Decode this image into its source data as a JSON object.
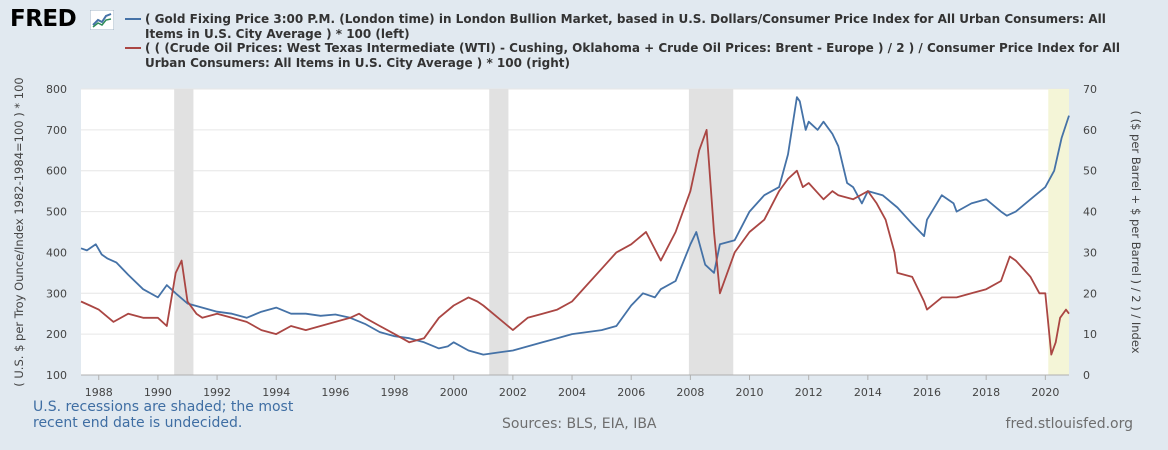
{
  "header": {
    "logo_text": "FRED",
    "logo_icon": "chart-line-icon"
  },
  "legend": [
    {
      "label": "( Gold Fixing Price 3:00 P.M. (London time) in London Bullion Market, based in U.S. Dollars/Consumer Price Index for All Urban Consumers: All Items in U.S. City Average ) * 100 (left)",
      "color": "#4572a7"
    },
    {
      "label": "( ( (Crude Oil Prices: West Texas Intermediate (WTI) - Cushing, Oklahoma + Crude Oil Prices: Brent - Europe ) / 2 ) / Consumer Price Index for All Urban Consumers: All Items in U.S. City Average ) * 100 (right)",
      "color": "#aa4643"
    }
  ],
  "footer": {
    "recession_note": "U.S. recessions are shaded; the most recent end date is undecided.",
    "sources": "Sources: BLS, EIA, IBA",
    "site": "fred.stlouisfed.org"
  },
  "chart_data": {
    "type": "line",
    "x_range": [
      1987.4,
      2020.8
    ],
    "x_ticks": [
      1988,
      1990,
      1992,
      1994,
      1996,
      1998,
      2000,
      2002,
      2004,
      2006,
      2008,
      2010,
      2012,
      2014,
      2016,
      2018,
      2020
    ],
    "ylabel_left": "( U.S. $ per Troy Ounce/Index 1982-1984=100 ) * 100",
    "ylabel_right": "( ($ per Barrel + $ per Barrel ) / 2 ) / Index",
    "ylim_left": [
      100,
      800
    ],
    "yticks_left": [
      100,
      200,
      300,
      400,
      500,
      600,
      700,
      800
    ],
    "ylim_right": [
      0,
      70
    ],
    "yticks_right": [
      0,
      10,
      20,
      30,
      40,
      50,
      60,
      70
    ],
    "recessions": [
      [
        1990.55,
        1991.2
      ],
      [
        2001.2,
        2001.85
      ],
      [
        2007.95,
        2009.45
      ]
    ],
    "undecided_recession": [
      2020.1,
      2020.8
    ],
    "series": [
      {
        "name": "Gold / CPI * 100",
        "axis": "left",
        "color": "#4572a7",
        "x": [
          1987.4,
          1987.6,
          1987.9,
          1988.1,
          1988.3,
          1988.6,
          1989.0,
          1989.5,
          1990.0,
          1990.3,
          1990.6,
          1991.0,
          1991.5,
          1992.0,
          1992.5,
          1993.0,
          1993.5,
          1994.0,
          1994.5,
          1995.0,
          1995.5,
          1996.0,
          1996.5,
          1997.0,
          1997.5,
          1998.0,
          1998.5,
          1999.0,
          1999.5,
          1999.8,
          2000.0,
          2000.5,
          2001.0,
          2001.5,
          2002.0,
          2002.5,
          2003.0,
          2003.5,
          2004.0,
          2004.5,
          2005.0,
          2005.5,
          2006.0,
          2006.4,
          2006.8,
          2007.0,
          2007.5,
          2008.0,
          2008.2,
          2008.5,
          2008.8,
          2009.0,
          2009.5,
          2010.0,
          2010.5,
          2011.0,
          2011.3,
          2011.6,
          2011.7,
          2011.9,
          2012.0,
          2012.3,
          2012.5,
          2012.8,
          2013.0,
          2013.3,
          2013.5,
          2013.8,
          2014.0,
          2014.5,
          2015.0,
          2015.5,
          2015.9,
          2016.0,
          2016.5,
          2016.9,
          2017.0,
          2017.5,
          2018.0,
          2018.5,
          2018.7,
          2019.0,
          2019.5,
          2020.0,
          2020.3,
          2020.55,
          2020.8
        ],
        "values": [
          410,
          405,
          420,
          395,
          385,
          375,
          345,
          310,
          290,
          320,
          300,
          275,
          265,
          255,
          250,
          240,
          255,
          265,
          250,
          250,
          245,
          248,
          240,
          225,
          205,
          195,
          190,
          180,
          165,
          170,
          180,
          160,
          150,
          155,
          160,
          170,
          180,
          190,
          200,
          205,
          210,
          220,
          270,
          300,
          290,
          310,
          330,
          420,
          450,
          370,
          350,
          420,
          430,
          500,
          540,
          560,
          640,
          780,
          770,
          700,
          720,
          700,
          720,
          690,
          660,
          570,
          560,
          520,
          550,
          540,
          510,
          470,
          440,
          480,
          540,
          520,
          500,
          520,
          530,
          500,
          490,
          500,
          530,
          560,
          600,
          680,
          735
        ]
      },
      {
        "name": "Avg crude oil / CPI * 100",
        "axis": "right",
        "color": "#aa4643",
        "x": [
          1987.4,
          1987.7,
          1988.0,
          1988.5,
          1989.0,
          1989.5,
          1990.0,
          1990.3,
          1990.6,
          1990.8,
          1991.0,
          1991.3,
          1991.5,
          1992.0,
          1992.5,
          1993.0,
          1993.5,
          1994.0,
          1994.5,
          1995.0,
          1995.5,
          1996.0,
          1996.5,
          1996.8,
          1997.0,
          1997.5,
          1998.0,
          1998.5,
          1999.0,
          1999.5,
          2000.0,
          2000.5,
          2000.8,
          2001.0,
          2001.5,
          2002.0,
          2002.5,
          2003.0,
          2003.5,
          2004.0,
          2004.5,
          2005.0,
          2005.5,
          2006.0,
          2006.5,
          2007.0,
          2007.5,
          2008.0,
          2008.3,
          2008.55,
          2008.8,
          2009.0,
          2009.5,
          2010.0,
          2010.5,
          2011.0,
          2011.3,
          2011.6,
          2011.8,
          2012.0,
          2012.5,
          2012.8,
          2013.0,
          2013.5,
          2014.0,
          2014.3,
          2014.6,
          2014.9,
          2015.0,
          2015.5,
          2015.9,
          2016.0,
          2016.5,
          2017.0,
          2017.5,
          2018.0,
          2018.5,
          2018.8,
          2019.0,
          2019.5,
          2019.8,
          2020.0,
          2020.2,
          2020.35,
          2020.5,
          2020.7,
          2020.8
        ],
        "values": [
          18,
          17,
          16,
          13,
          15,
          14,
          14,
          12,
          25,
          28,
          18,
          15,
          14,
          15,
          14,
          13,
          11,
          10,
          12,
          11,
          12,
          13,
          14,
          15,
          14,
          12,
          10,
          8,
          9,
          14,
          17,
          19,
          18,
          17,
          14,
          11,
          14,
          15,
          16,
          18,
          22,
          26,
          30,
          32,
          35,
          28,
          35,
          45,
          55,
          60,
          35,
          20,
          30,
          35,
          38,
          45,
          48,
          50,
          46,
          47,
          43,
          45,
          44,
          43,
          45,
          42,
          38,
          30,
          25,
          24,
          18,
          16,
          19,
          19,
          20,
          21,
          23,
          29,
          28,
          24,
          20,
          20,
          5,
          8,
          14,
          16,
          15
        ]
      }
    ]
  }
}
